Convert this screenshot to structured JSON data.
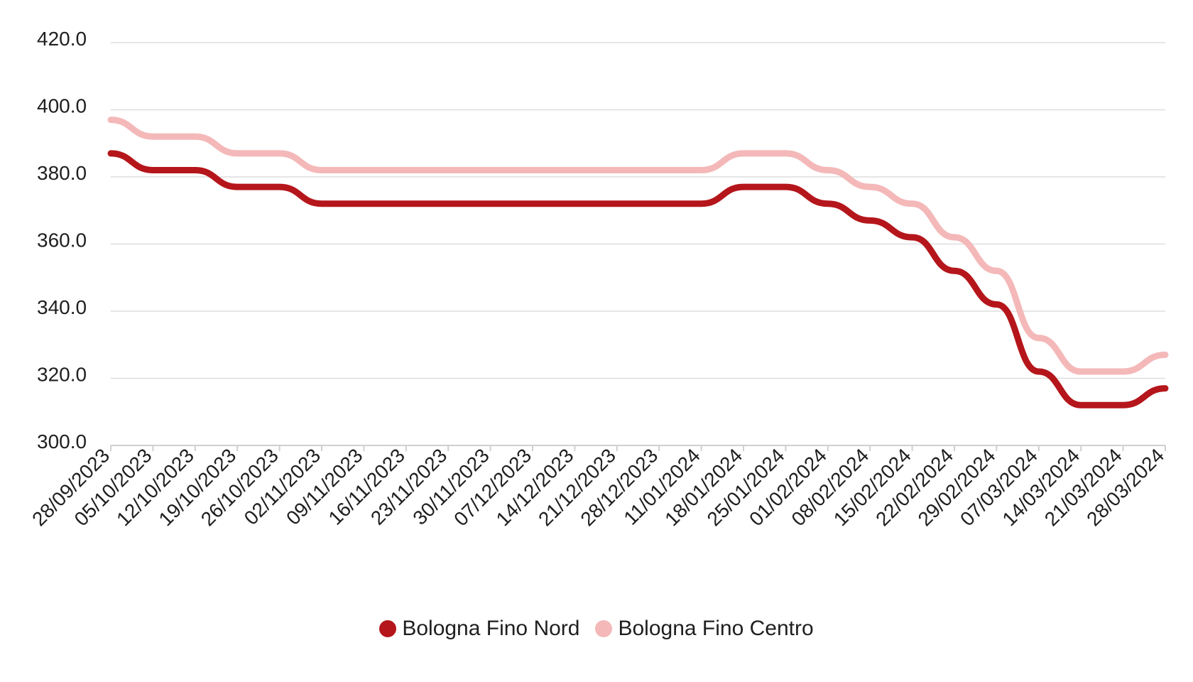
{
  "chart_data": {
    "type": "line",
    "title": "",
    "xlabel": "",
    "ylabel": "",
    "ylim": [
      300,
      420
    ],
    "y_ticks": [
      "300.0",
      "320.0",
      "340.0",
      "360.0",
      "380.0",
      "400.0",
      "420.0"
    ],
    "grid": "horizontal",
    "legend_position": "bottom-center",
    "x": [
      "28/09/2023",
      "05/10/2023",
      "12/10/2023",
      "19/10/2023",
      "26/10/2023",
      "02/11/2023",
      "09/11/2023",
      "16/11/2023",
      "23/11/2023",
      "30/11/2023",
      "07/12/2023",
      "14/12/2023",
      "21/12/2023",
      "28/12/2023",
      "11/01/2024",
      "18/01/2024",
      "25/01/2024",
      "01/02/2024",
      "08/02/2024",
      "15/02/2024",
      "22/02/2024",
      "29/02/2024",
      "07/03/2024",
      "14/03/2024",
      "21/03/2024",
      "28/03/2024"
    ],
    "series": [
      {
        "name": "Bologna Fino Nord",
        "color": "#b5161b",
        "values": [
          387,
          382,
          382,
          377,
          377,
          372,
          372,
          372,
          372,
          372,
          372,
          372,
          372,
          372,
          372,
          377,
          377,
          372,
          367,
          362,
          352,
          342,
          322,
          312,
          312,
          317
        ]
      },
      {
        "name": "Bologna Fino Centro",
        "color": "#f4b8b8",
        "values": [
          397,
          392,
          392,
          387,
          387,
          382,
          382,
          382,
          382,
          382,
          382,
          382,
          382,
          382,
          382,
          387,
          387,
          382,
          377,
          372,
          362,
          352,
          332,
          322,
          322,
          327
        ]
      }
    ]
  }
}
